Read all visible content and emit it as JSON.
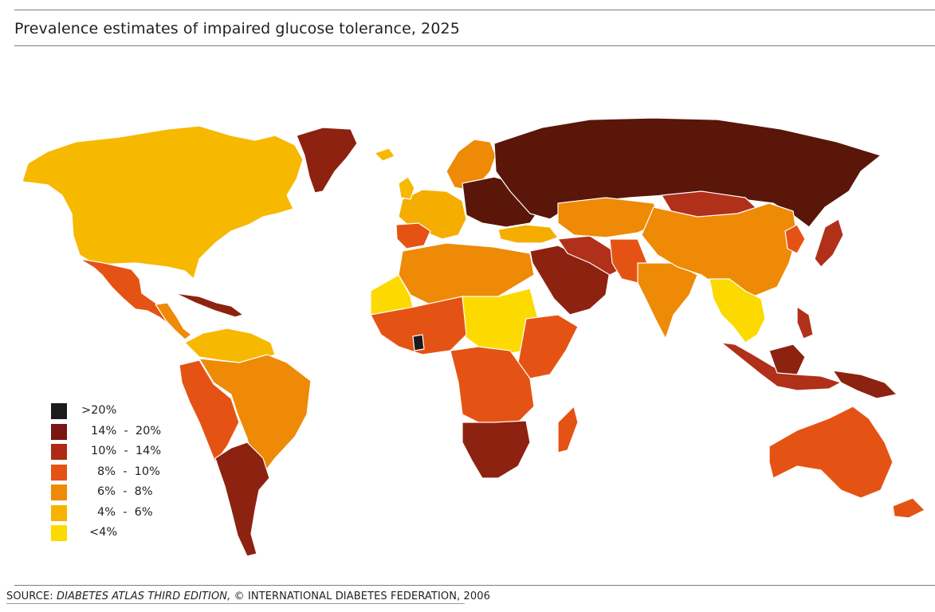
{
  "title": "Prevalence estimates of impaired glucose tolerance, 2025",
  "source": {
    "prefix": "SOURCE: ",
    "italic": "DIABETES ATLAS THIRD EDITION,",
    "suffix": " © INTERNATIONAL DIABETES FEDERATION, 2006"
  },
  "legend": [
    {
      "label": ">20%",
      "color": "#1c1a1d"
    },
    {
      "label": "14%  -  20%",
      "color": "#7a1513"
    },
    {
      "label": "10%  -  14%",
      "color": "#ad2a16"
    },
    {
      "label": "8%  -  10%",
      "color": "#e55314"
    },
    {
      "label": "6%  -  8%",
      "color": "#ee8a06"
    },
    {
      "label": "4%  -  6%",
      "color": "#f7b300"
    },
    {
      "label": "<4%",
      "color": "#fcda00"
    }
  ],
  "map_colors": {
    "dark_brown": "#5a1609",
    "dark_red": "#8e2210",
    "red": "#b0301a",
    "orange_red": "#e55314",
    "orange": "#ee8a06",
    "light_orange": "#f5ad00",
    "yellow_orange": "#f7b800",
    "yellow": "#fcda00",
    "black": "#1c1a1d"
  }
}
